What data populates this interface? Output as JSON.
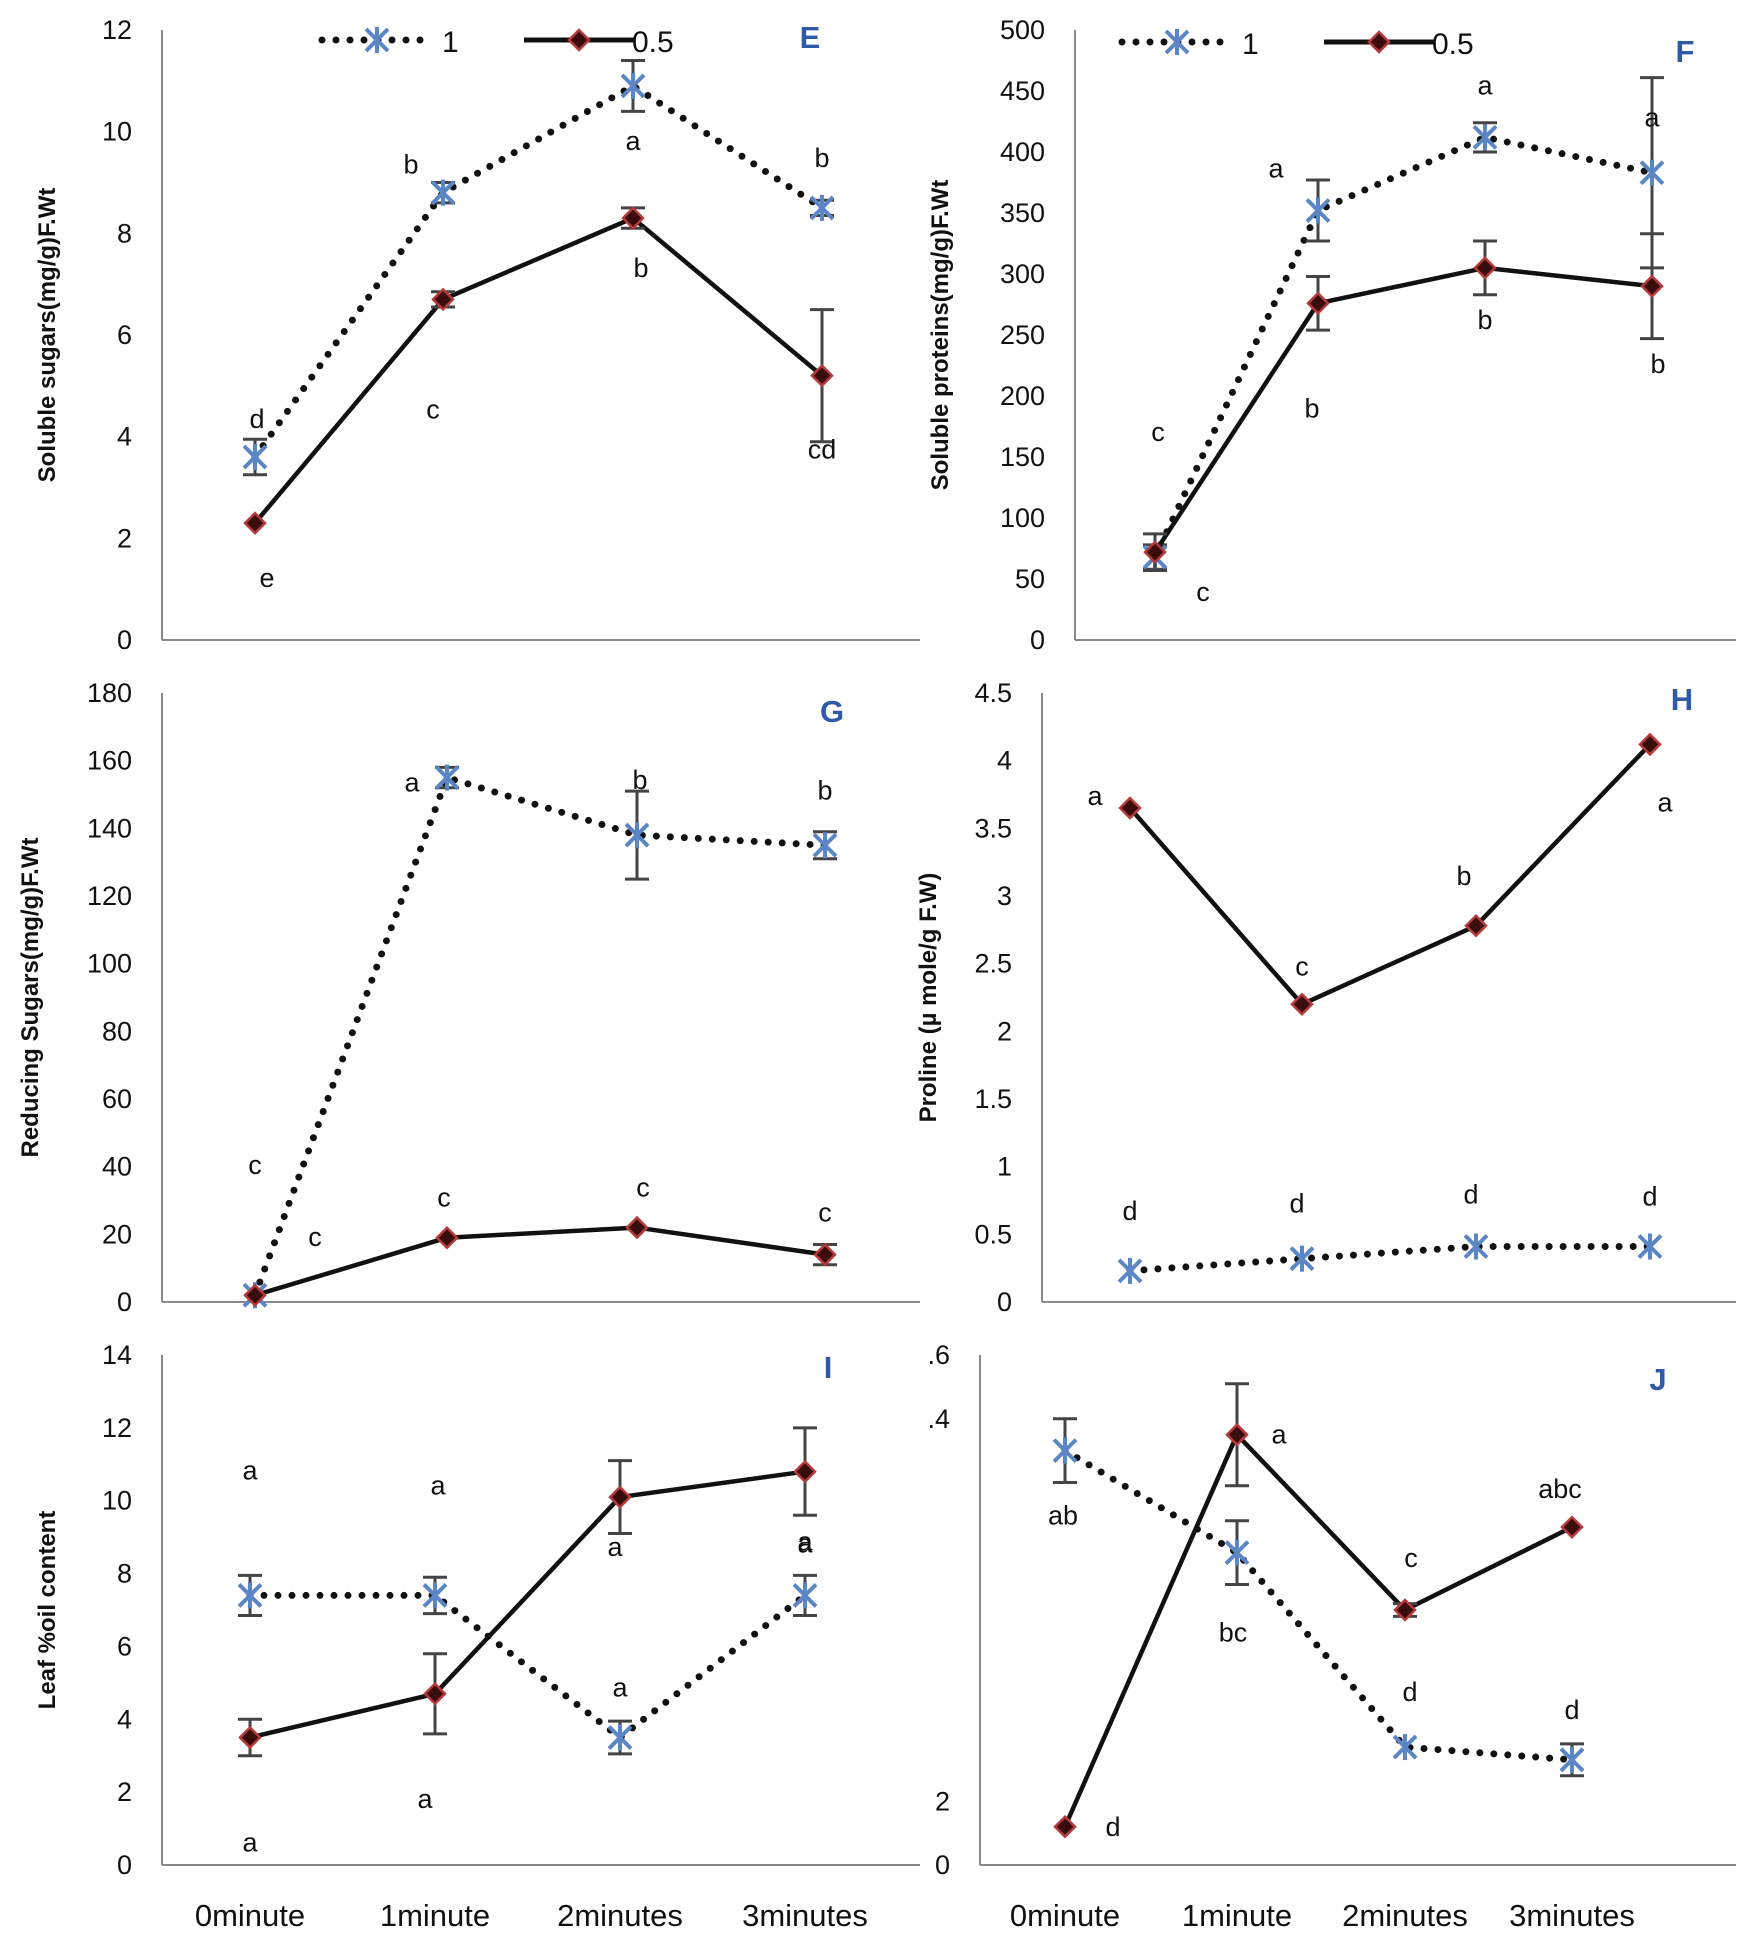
{
  "chart_data": {
    "x_categories": [
      "0minute",
      "1minute",
      "2minutes",
      "3minutes"
    ],
    "legend": [
      "1",
      "0.5"
    ],
    "series_styles": {
      "1": "dotted line, star markers",
      "0.5": "solid line, diamond markers"
    },
    "colors": {
      "line": "#111111",
      "star_marker": "#5b86c6",
      "diamond_fill": "#3a0d0d",
      "diamond_edge": "#b53a3a",
      "error_bar": "#444444",
      "panel_label": "#2e5aa8",
      "axis": "#8a8a8a"
    },
    "panels": [
      {
        "id": "E",
        "label": "E",
        "type": "line",
        "ylabel": "Soluble sugars(mg/g)F.Wt",
        "ylim": [
          0,
          12
        ],
        "yticks": [
          "0",
          "2",
          "4",
          "6",
          "8",
          "10",
          "12"
        ],
        "series": [
          {
            "name": "1",
            "values": [
              3.6,
              8.8,
              10.9,
              8.5
            ],
            "errors": [
              0.35,
              0.2,
              0.5,
              0.15
            ],
            "sig": [
              "d",
              "b",
              "a",
              "b"
            ]
          },
          {
            "name": "0.5",
            "values": [
              2.3,
              6.7,
              8.3,
              5.2
            ],
            "errors": [
              0,
              0.15,
              0.2,
              1.3
            ],
            "sig": [
              "e",
              "c",
              "b",
              "cd"
            ]
          }
        ]
      },
      {
        "id": "F",
        "label": "F",
        "type": "line",
        "ylabel": "Soluble proteins(mg/g)F.Wt",
        "ylim": [
          0,
          500
        ],
        "yticks": [
          "0",
          "50",
          "100",
          "150",
          "200",
          "250",
          "300",
          "350",
          "400",
          "450",
          "500"
        ],
        "series": [
          {
            "name": "1",
            "values": [
              68,
              352,
              412,
              383
            ],
            "errors": [
              10,
              25,
              12,
              78
            ],
            "sig": [
              "c",
              "a",
              "a",
              "a"
            ]
          },
          {
            "name": "0.5",
            "values": [
              72,
              276,
              305,
              290
            ],
            "errors": [
              15,
              22,
              22,
              43
            ],
            "sig": [
              "c",
              "b",
              "b",
              "b"
            ]
          }
        ]
      },
      {
        "id": "G",
        "label": "G",
        "type": "line",
        "ylabel": "Reducing Sugars(mg/g)F.Wt",
        "ylim": [
          0,
          180
        ],
        "yticks": [
          "0",
          "20",
          "40",
          "60",
          "80",
          "100",
          "120",
          "140",
          "160",
          "180"
        ],
        "series": [
          {
            "name": "1",
            "values": [
              2,
              155,
              138,
              135
            ],
            "errors": [
              0,
              3,
              13,
              4
            ],
            "sig": [
              "c",
              "a",
              "b",
              "b"
            ]
          },
          {
            "name": "0.5",
            "values": [
              2,
              19,
              22,
              14
            ],
            "errors": [
              0,
              0,
              0,
              3
            ],
            "sig": [
              "c",
              "c",
              "c",
              "c"
            ]
          }
        ]
      },
      {
        "id": "H",
        "label": "H",
        "type": "line",
        "ylabel": "Proline (µ mole/g F.W)",
        "ylim": [
          0,
          4.5
        ],
        "yticks": [
          "0",
          "0.5",
          "1",
          "1.5",
          "2",
          "2.5",
          "3",
          "3.5",
          "4",
          "4.5"
        ],
        "series": [
          {
            "name": "1",
            "values": [
              0.23,
              0.32,
              0.41,
              0.41
            ],
            "errors": [
              0,
              0,
              0,
              0
            ],
            "sig": [
              "d",
              "d",
              "d",
              "d"
            ]
          },
          {
            "name": "0.5",
            "values": [
              3.65,
              2.2,
              2.78,
              4.12
            ],
            "errors": [
              0,
              0,
              0,
              0
            ],
            "sig": [
              "a",
              "c",
              "b",
              "a"
            ]
          }
        ]
      },
      {
        "id": "I",
        "label": "I",
        "type": "line",
        "ylabel": "Leaf %oil content",
        "ylim": [
          0,
          14
        ],
        "yticks": [
          "0",
          "2",
          "4",
          "6",
          "8",
          "10",
          "12",
          "14"
        ],
        "series": [
          {
            "name": "1",
            "values": [
              7.4,
              7.4,
              3.5,
              7.4
            ],
            "errors": [
              0.55,
              0.5,
              0.45,
              0.55
            ],
            "sig": [
              "a",
              "a",
              "a",
              "a"
            ]
          },
          {
            "name": "0.5",
            "values": [
              3.5,
              4.7,
              10.1,
              10.8
            ],
            "errors": [
              0.5,
              1.1,
              1.0,
              1.2
            ],
            "sig": [
              "a",
              "a",
              "a",
              "a"
            ]
          }
        ]
      },
      {
        "id": "J",
        "label": "J",
        "type": "line",
        "ylabel": "",
        "ylim": [
          0,
          1.6
        ],
        "yticks": [
          "0",
          "2",
          "",
          "",
          "",
          "",
          "",
          ".4",
          ".6"
        ],
        "series": [
          {
            "name": "1",
            "values": [
              1.3,
              0.98,
              0.37,
              0.33
            ],
            "errors": [
              0.1,
              0.1,
              0,
              0.05
            ],
            "sig": [
              "ab",
              "bc",
              "d",
              "d"
            ]
          },
          {
            "name": "0.5",
            "values": [
              0.12,
              1.35,
              0.8,
              1.06
            ],
            "errors": [
              0,
              0.16,
              0.02,
              0
            ],
            "sig": [
              "d",
              "a",
              "c",
              "abc"
            ]
          }
        ]
      }
    ]
  }
}
